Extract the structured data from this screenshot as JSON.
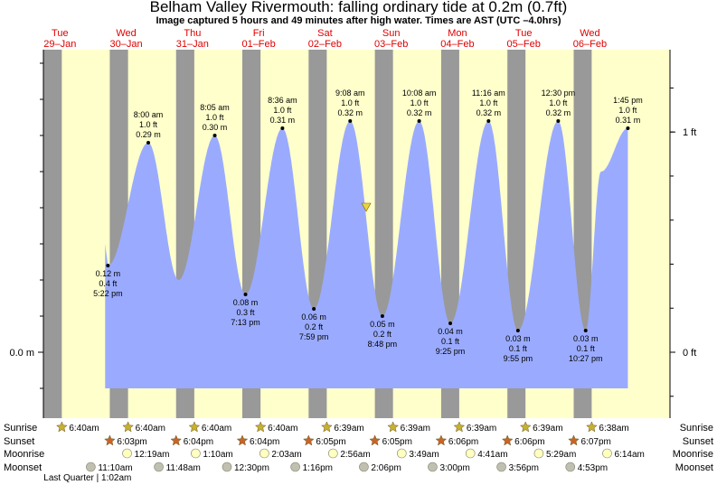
{
  "title": "Belham Valley Rivermouth: falling  ordinary tide at 0.2m (0.7ft)",
  "subtitle": "Image captured 5 hours and 49 minutes after high water. Times are AST (UTC –4.0hrs)",
  "colors": {
    "night": "#999999",
    "day": "#ffffcc",
    "tide": "#9aabff",
    "marker": "#e8d440",
    "day_label": "#e00000",
    "sunrise_icon": "#c8b030",
    "sunset_icon": "#c86428",
    "moonrise_icon": "#ffffc0",
    "moonset_icon": "#c0c0b0"
  },
  "chart_data": {
    "type": "area",
    "title": "Belham Valley Rivermouth: falling  ordinary tide at 0.2m (0.7ft)",
    "y_unit_left": "m",
    "y_unit_right": "ft",
    "ylim_m": [
      -0.09,
      0.42
    ],
    "y_ticks_left": [
      {
        "value": 0.0,
        "label": "0.0 m"
      }
    ],
    "y_ticks_right": [
      {
        "value_ft": 0,
        "label": "0 ft"
      },
      {
        "value_ft": 1,
        "label": "1 ft"
      }
    ],
    "days": [
      {
        "dow": "Tue",
        "date": "29–Jan",
        "sunrise": 24.6667,
        "sunset": 42.05
      },
      {
        "dow": "Wed",
        "date": "30–Jan",
        "sunrise": 48.6667,
        "sunset": 66.0667
      },
      {
        "dow": "Thu",
        "date": "31–Jan",
        "sunrise": 72.6667,
        "sunset": 90.0667
      },
      {
        "dow": "Fri",
        "date": "01–Feb",
        "sunrise": 96.6667,
        "sunset": 114.0833
      },
      {
        "dow": "Sat",
        "date": "02–Feb",
        "sunrise": 120.65,
        "sunset": 138.0833
      },
      {
        "dow": "Sun",
        "date": "03–Feb",
        "sunrise": 144.65,
        "sunset": 162.1
      },
      {
        "dow": "Mon",
        "date": "04–Feb",
        "sunrise": 168.65,
        "sunset": 186.1
      },
      {
        "dow": "Tue",
        "date": "05–Feb",
        "sunrise": 192.65,
        "sunset": 210.1167
      },
      {
        "dow": "Wed",
        "date": "06–Feb",
        "sunrise": 216.6333,
        "sunset": null
      }
    ],
    "extremes": [
      {
        "t": 41.3667,
        "m": 0.12,
        "kind": "low",
        "time": "5:22 pm",
        "m_label": "0.12 m",
        "ft_label": "0.4 ft"
      },
      {
        "t": 56.0,
        "m": 0.29,
        "kind": "high",
        "time": "8:00 am",
        "m_label": "0.29 m",
        "ft_label": "1.0 ft"
      },
      {
        "t": 67.0,
        "m": 0.1,
        "kind": "mid",
        "time": null
      },
      {
        "t": 80.0833,
        "m": 0.3,
        "kind": "high",
        "time": "8:05 am",
        "m_label": "0.30 m",
        "ft_label": "1.0 ft"
      },
      {
        "t": 91.2167,
        "m": 0.08,
        "kind": "low",
        "time": "7:13 pm",
        "m_label": "0.08 m",
        "ft_label": "0.3 ft"
      },
      {
        "t": 104.6,
        "m": 0.31,
        "kind": "high",
        "time": "8:36 am",
        "m_label": "0.31 m",
        "ft_label": "1.0 ft"
      },
      {
        "t": 115.9833,
        "m": 0.06,
        "kind": "low",
        "time": "7:59 pm",
        "m_label": "0.06 m",
        "ft_label": "0.2 ft"
      },
      {
        "t": 129.1333,
        "m": 0.32,
        "kind": "high",
        "time": "9:08 am",
        "m_label": "0.32 m",
        "ft_label": "1.0 ft"
      },
      {
        "t": 140.8,
        "m": 0.05,
        "kind": "low",
        "time": "8:48 pm",
        "m_label": "0.05 m",
        "ft_label": "0.2 ft"
      },
      {
        "t": 154.1333,
        "m": 0.32,
        "kind": "high",
        "time": "10:08 am",
        "m_label": "0.32 m",
        "ft_label": "1.0 ft"
      },
      {
        "t": 165.4167,
        "m": 0.04,
        "kind": "low",
        "time": "9:25 pm",
        "m_label": "0.04 m",
        "ft_label": "0.1 ft"
      },
      {
        "t": 179.2667,
        "m": 0.32,
        "kind": "high",
        "time": "11:16 am",
        "m_label": "0.32 m",
        "ft_label": "1.0 ft"
      },
      {
        "t": 189.9167,
        "m": 0.03,
        "kind": "low",
        "time": "9:55 pm",
        "m_label": "0.03 m",
        "ft_label": "0.1 ft"
      },
      {
        "t": 204.5,
        "m": 0.32,
        "kind": "high",
        "time": "12:30 pm",
        "m_label": "0.32 m",
        "ft_label": "1.0 ft"
      },
      {
        "t": 214.45,
        "m": 0.03,
        "kind": "low",
        "time": "10:27 pm",
        "m_label": "0.03 m",
        "ft_label": "0.1 ft"
      },
      {
        "t": 220.0,
        "m": 0.25,
        "kind": "mid",
        "time": null
      },
      {
        "t": 229.75,
        "m": 0.31,
        "kind": "high",
        "time": "1:45 pm",
        "m_label": "0.31 m",
        "ft_label": "1.0 ft"
      }
    ],
    "current": {
      "t": 134.95,
      "m": 0.2
    }
  },
  "astronomy": {
    "row_labels": {
      "sunrise": "Sunrise",
      "sunset": "Sunset",
      "moonrise": "Moonrise",
      "moonset": "Moonset"
    },
    "sunrise": [
      {
        "t": 24.6667,
        "label": "6:40am"
      },
      {
        "t": 48.6667,
        "label": "6:40am"
      },
      {
        "t": 72.6667,
        "label": "6:40am"
      },
      {
        "t": 96.6667,
        "label": "6:40am"
      },
      {
        "t": 120.65,
        "label": "6:39am"
      },
      {
        "t": 144.65,
        "label": "6:39am"
      },
      {
        "t": 168.65,
        "label": "6:39am"
      },
      {
        "t": 192.65,
        "label": "6:39am"
      },
      {
        "t": 216.6333,
        "label": "6:38am"
      }
    ],
    "sunset": [
      {
        "t": 42.05,
        "label": "6:03pm"
      },
      {
        "t": 66.0667,
        "label": "6:04pm"
      },
      {
        "t": 90.0667,
        "label": "6:04pm"
      },
      {
        "t": 114.0833,
        "label": "6:05pm"
      },
      {
        "t": 138.0833,
        "label": "6:05pm"
      },
      {
        "t": 162.1,
        "label": "6:06pm"
      },
      {
        "t": 186.1,
        "label": "6:06pm"
      },
      {
        "t": 210.1167,
        "label": "6:07pm"
      }
    ],
    "moonrise": [
      {
        "t": 48.3167,
        "label": "12:19am"
      },
      {
        "t": 73.1667,
        "label": "1:10am"
      },
      {
        "t": 98.05,
        "label": "2:03am"
      },
      {
        "t": 122.9333,
        "label": "2:56am"
      },
      {
        "t": 147.8167,
        "label": "3:49am"
      },
      {
        "t": 172.6833,
        "label": "4:41am"
      },
      {
        "t": 197.4833,
        "label": "5:29am"
      },
      {
        "t": 222.2333,
        "label": "6:14am"
      }
    ],
    "moonset": [
      {
        "t": 35.1667,
        "label": "11:10am"
      },
      {
        "t": 59.8,
        "label": "11:48am"
      },
      {
        "t": 84.5,
        "label": "12:30pm"
      },
      {
        "t": 109.2667,
        "label": "1:16pm"
      },
      {
        "t": 134.1,
        "label": "2:06pm"
      },
      {
        "t": 159.0,
        "label": "3:00pm"
      },
      {
        "t": 183.9333,
        "label": "3:56pm"
      },
      {
        "t": 208.8833,
        "label": "4:53pm"
      }
    ],
    "moon_phase": "Last Quarter | 1:02am"
  }
}
